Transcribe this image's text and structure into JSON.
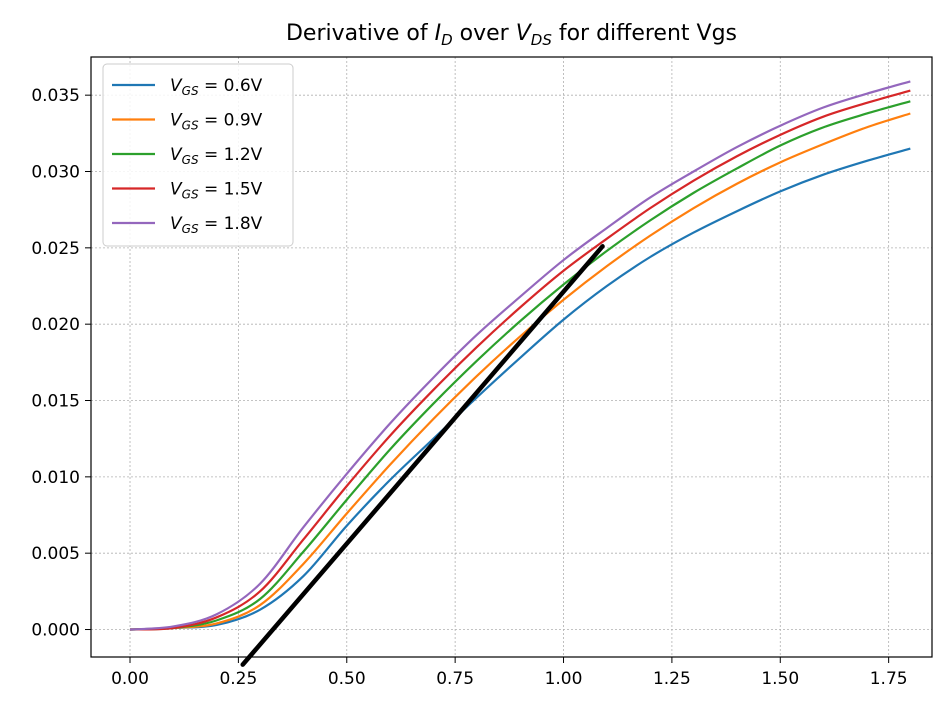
{
  "chart_data": {
    "type": "line",
    "title_parts": {
      "pre": "Derivative of ",
      "var1": "I",
      "sub1": "D",
      "mid": " over ",
      "var2": "V",
      "sub2": "DS",
      "post": " for different Vgs"
    },
    "xlabel": "",
    "ylabel": "",
    "xlim": [
      -0.09,
      1.85
    ],
    "ylim": [
      -0.0018,
      0.0375
    ],
    "x_ticks": [
      0.0,
      0.25,
      0.5,
      0.75,
      1.0,
      1.25,
      1.5,
      1.75
    ],
    "x_tick_labels": [
      "0.00",
      "0.25",
      "0.50",
      "0.75",
      "1.00",
      "1.25",
      "1.50",
      "1.75"
    ],
    "y_ticks": [
      0.0,
      0.005,
      0.01,
      0.015,
      0.02,
      0.025,
      0.03,
      0.035
    ],
    "y_tick_labels": [
      "0.000",
      "0.005",
      "0.010",
      "0.015",
      "0.020",
      "0.025",
      "0.030",
      "0.035"
    ],
    "grid": true,
    "legend_position": "top-left",
    "x": [
      0.0,
      0.1,
      0.2,
      0.3,
      0.4,
      0.5,
      0.6,
      0.7,
      0.8,
      0.9,
      1.0,
      1.1,
      1.2,
      1.3,
      1.4,
      1.5,
      1.6,
      1.7,
      1.8
    ],
    "series": [
      {
        "legend_var": "V",
        "legend_sub": "GS",
        "legend_value": " = 0.6V",
        "color": "#1f77b4",
        "values": [
          0.0,
          0.0001,
          0.0003,
          0.0013,
          0.0035,
          0.0068,
          0.0098,
          0.0125,
          0.0152,
          0.0178,
          0.0203,
          0.0225,
          0.0244,
          0.026,
          0.0274,
          0.0287,
          0.0298,
          0.0307,
          0.0315
        ]
      },
      {
        "legend_var": "V",
        "legend_sub": "GS",
        "legend_value": " = 0.9V",
        "color": "#ff7f0e",
        "values": [
          0.0,
          0.0001,
          0.0004,
          0.0016,
          0.0043,
          0.0076,
          0.0108,
          0.0138,
          0.0166,
          0.0192,
          0.0216,
          0.0238,
          0.0258,
          0.0276,
          0.0292,
          0.0306,
          0.0318,
          0.0329,
          0.0338
        ]
      },
      {
        "legend_var": "V",
        "legend_sub": "GS",
        "legend_value": " = 1.2V",
        "color": "#2ca02c",
        "values": [
          0.0,
          0.0001,
          0.0006,
          0.002,
          0.0051,
          0.0085,
          0.0118,
          0.0148,
          0.0176,
          0.0202,
          0.0226,
          0.0248,
          0.0268,
          0.0286,
          0.0302,
          0.0317,
          0.0329,
          0.0338,
          0.0346
        ]
      },
      {
        "legend_var": "V",
        "legend_sub": "GS",
        "legend_value": " = 1.5V",
        "color": "#d62728",
        "values": [
          0.0,
          0.0001,
          0.0008,
          0.0025,
          0.0059,
          0.0094,
          0.0127,
          0.0157,
          0.0185,
          0.0211,
          0.0235,
          0.0256,
          0.0276,
          0.0294,
          0.031,
          0.0324,
          0.0336,
          0.0345,
          0.0353
        ]
      },
      {
        "legend_var": "V",
        "legend_sub": "GS",
        "legend_value": " = 1.8V",
        "color": "#9467bd",
        "values": [
          0.0,
          0.0002,
          0.001,
          0.003,
          0.0067,
          0.0102,
          0.0135,
          0.0165,
          0.0193,
          0.0218,
          0.0242,
          0.0263,
          0.0283,
          0.03,
          0.0316,
          0.033,
          0.0342,
          0.0351,
          0.0359
        ]
      }
    ],
    "annotation_line": {
      "color": "#000000",
      "x": [
        0.26,
        1.09
      ],
      "y": [
        -0.0023,
        0.0251
      ]
    }
  }
}
